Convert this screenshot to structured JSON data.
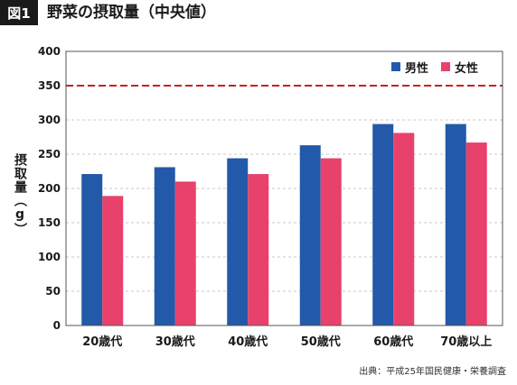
{
  "header": {
    "badge": "図1",
    "title": "野菜の摂取量（中央値）"
  },
  "source": "出典：平成25年国民健康・栄養調査",
  "colors": {
    "male": "#2259a8",
    "female": "#e8416b",
    "reference_line": "#cc1f1f",
    "grid": "#c8c8c8"
  },
  "chart_data": {
    "type": "bar",
    "categories": [
      "20歳代",
      "30歳代",
      "40歳代",
      "50歳代",
      "60歳代",
      "70歳以上"
    ],
    "series": [
      {
        "name": "男性",
        "values": [
          221,
          231,
          244,
          263,
          294,
          294
        ]
      },
      {
        "name": "女性",
        "values": [
          189,
          210,
          221,
          244,
          281,
          267
        ]
      }
    ],
    "ylabel": "摂取量（g）",
    "xlabel": "",
    "ylim": [
      0,
      400
    ],
    "yticks": [
      0,
      50,
      100,
      150,
      200,
      250,
      300,
      350,
      400
    ],
    "reference_line": 350,
    "grid": true,
    "legend_position": "top-right"
  }
}
